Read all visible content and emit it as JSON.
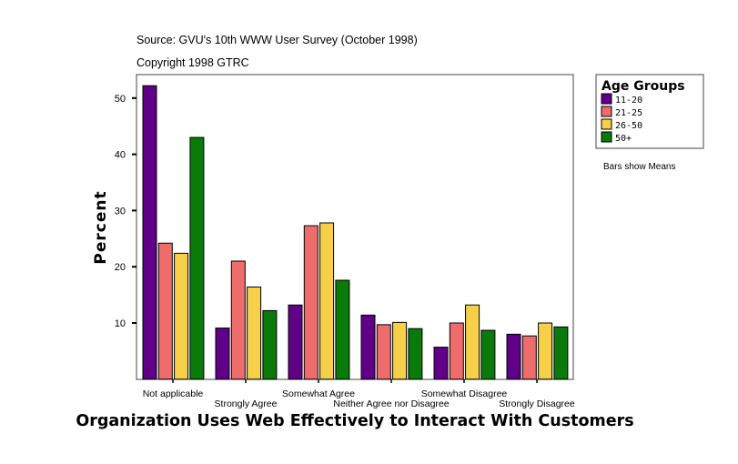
{
  "chart_data": {
    "type": "bar",
    "source": "Source: GVU's 10th WWW User Survey (October 1998)",
    "copyright": "Copyright 1998 GTRC",
    "title": "Organization Uses Web Effectively to Interact With Customers",
    "xlabel": "Organization Uses Web Effectively to Interact With Customers",
    "ylabel": "Percent",
    "ylim": [
      0,
      54
    ],
    "yticks": [
      10,
      20,
      30,
      40,
      50
    ],
    "categories": [
      "Not applicable",
      "Strongly Agree",
      "Somewhat Agree",
      "Neither Agree nor Disagree",
      "Somewhat Disagree",
      "Strongly Disagree"
    ],
    "legend_title": "Age Groups",
    "legend_position": "right",
    "note": "Bars show Means",
    "series": [
      {
        "name": "11-20",
        "color": "#5f0087",
        "values": [
          52.2,
          9.1,
          13.2,
          11.4,
          5.7,
          8.0
        ]
      },
      {
        "name": "21-25",
        "color": "#ef6c6c",
        "values": [
          24.2,
          21.0,
          27.3,
          9.7,
          10.0,
          7.7
        ]
      },
      {
        "name": "26-50",
        "color": "#f5d048",
        "values": [
          22.4,
          16.4,
          27.8,
          10.1,
          13.2,
          10.0
        ]
      },
      {
        "name": "50+",
        "color": "#0a7a0a",
        "values": [
          43.0,
          12.2,
          17.6,
          9.0,
          8.7,
          9.3
        ]
      }
    ]
  }
}
